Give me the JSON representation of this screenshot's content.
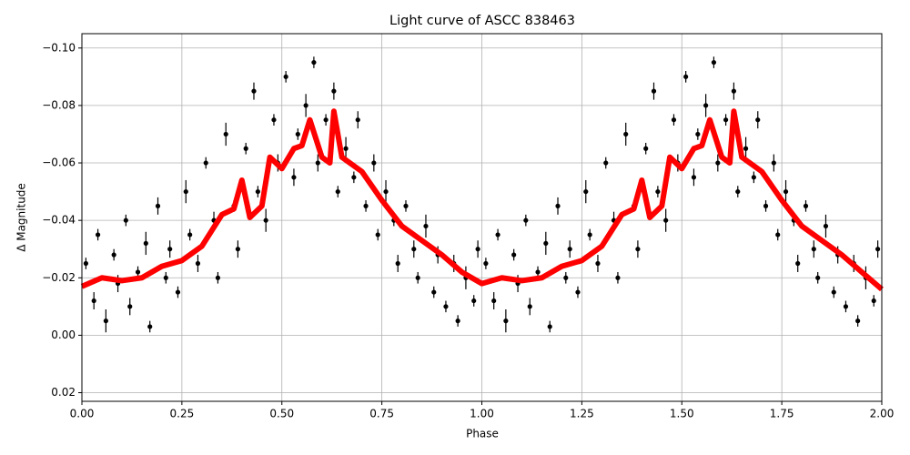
{
  "chart_data": {
    "type": "scatter",
    "title": "Light curve of ASCC 838463",
    "x_label": "Phase",
    "y_label": "Δ Magnitude",
    "xlim": [
      0,
      2
    ],
    "ylim": [
      0.023,
      -0.105
    ],
    "grid": true,
    "xticks": [
      {
        "value": 0,
        "label": "0.00"
      },
      {
        "value": 0.25,
        "label": "0.25"
      },
      {
        "value": 0.5,
        "label": "0.50"
      },
      {
        "value": 0.75,
        "label": "0.75"
      },
      {
        "value": 1,
        "label": "1.00"
      },
      {
        "value": 1.25,
        "label": "1.25"
      },
      {
        "value": 1.5,
        "label": "1.50"
      },
      {
        "value": 1.75,
        "label": "1.75"
      },
      {
        "value": 2,
        "label": "2.00"
      }
    ],
    "yticks": [
      {
        "value": -0.1,
        "label": "−0.10"
      },
      {
        "value": -0.08,
        "label": "−0.08"
      },
      {
        "value": -0.06,
        "label": "−0.06"
      },
      {
        "value": -0.04,
        "label": "−0.04"
      },
      {
        "value": -0.02,
        "label": "−0.02"
      },
      {
        "value": 0,
        "label": "0.00"
      },
      {
        "value": 0.02,
        "label": "0.02"
      }
    ],
    "series": [
      {
        "type": "errorbar",
        "color": "#000000",
        "x": [
          0.01,
          0.03,
          0.04,
          0.06,
          0.08,
          0.09,
          0.11,
          0.12,
          0.14,
          0.16,
          0.17,
          0.19,
          0.21,
          0.22,
          0.24,
          0.26,
          0.27,
          0.29,
          0.31,
          0.33,
          0.34,
          0.36,
          0.38,
          0.39,
          0.41,
          0.43,
          0.44,
          0.46,
          0.48,
          0.49,
          0.51,
          0.53,
          0.54,
          0.56,
          0.58,
          0.59,
          0.61,
          0.63,
          0.64,
          0.66,
          0.68,
          0.69,
          0.71,
          0.73,
          0.74,
          0.76,
          0.78,
          0.79,
          0.81,
          0.83,
          0.84,
          0.86,
          0.88,
          0.89,
          0.91,
          0.93,
          0.94,
          0.96,
          0.98,
          0.99,
          1.01,
          1.03,
          1.04,
          1.06,
          1.08,
          1.09,
          1.11,
          1.12,
          1.14,
          1.16,
          1.17,
          1.19,
          1.21,
          1.22,
          1.24,
          1.26,
          1.27,
          1.29,
          1.31,
          1.33,
          1.34,
          1.36,
          1.38,
          1.39,
          1.41,
          1.43,
          1.44,
          1.46,
          1.48,
          1.49,
          1.51,
          1.53,
          1.54,
          1.56,
          1.58,
          1.59,
          1.61,
          1.63,
          1.64,
          1.66,
          1.68,
          1.69,
          1.71,
          1.73,
          1.74,
          1.76,
          1.78,
          1.79,
          1.81,
          1.83,
          1.84,
          1.86,
          1.88,
          1.89,
          1.91,
          1.93,
          1.94,
          1.96,
          1.98,
          1.99
        ],
        "values": [
          -0.025,
          -0.012,
          -0.035,
          -0.005,
          -0.028,
          -0.018,
          -0.04,
          -0.01,
          -0.022,
          -0.032,
          -0.003,
          -0.045,
          -0.02,
          -0.03,
          -0.015,
          -0.05,
          -0.035,
          -0.025,
          -0.06,
          -0.04,
          -0.02,
          -0.07,
          -0.045,
          -0.03,
          -0.065,
          -0.085,
          -0.05,
          -0.04,
          -0.075,
          -0.06,
          -0.09,
          -0.055,
          -0.07,
          -0.08,
          -0.095,
          -0.06,
          -0.075,
          -0.085,
          -0.05,
          -0.065,
          -0.055,
          -0.075,
          -0.045,
          -0.06,
          -0.035,
          -0.05,
          -0.04,
          -0.025,
          -0.045,
          -0.03,
          -0.02,
          -0.038,
          -0.015,
          -0.028,
          -0.01,
          -0.025,
          -0.005,
          -0.02,
          -0.012,
          -0.03,
          -0.025,
          -0.012,
          -0.035,
          -0.005,
          -0.028,
          -0.018,
          -0.04,
          -0.01,
          -0.022,
          -0.032,
          -0.003,
          -0.045,
          -0.02,
          -0.03,
          -0.015,
          -0.05,
          -0.035,
          -0.025,
          -0.06,
          -0.04,
          -0.02,
          -0.07,
          -0.045,
          -0.03,
          -0.065,
          -0.085,
          -0.05,
          -0.04,
          -0.075,
          -0.06,
          -0.09,
          -0.055,
          -0.07,
          -0.08,
          -0.095,
          -0.06,
          -0.075,
          -0.085,
          -0.05,
          -0.065,
          -0.055,
          -0.075,
          -0.045,
          -0.06,
          -0.035,
          -0.05,
          -0.04,
          -0.025,
          -0.045,
          -0.03,
          -0.02,
          -0.038,
          -0.015,
          -0.028,
          -0.01,
          -0.025,
          -0.005,
          -0.02,
          -0.012,
          -0.03
        ],
        "errors": [
          0.002,
          0.003,
          0.002,
          0.004,
          0.002,
          0.003,
          0.002,
          0.003,
          0.002,
          0.004,
          0.002,
          0.003,
          0.002,
          0.003,
          0.002,
          0.004,
          0.002,
          0.003,
          0.002,
          0.003,
          0.002,
          0.004,
          0.002,
          0.003,
          0.002,
          0.003,
          0.002,
          0.004,
          0.002,
          0.003,
          0.002,
          0.003,
          0.002,
          0.004,
          0.002,
          0.003,
          0.002,
          0.003,
          0.002,
          0.004,
          0.002,
          0.003,
          0.002,
          0.003,
          0.002,
          0.004,
          0.002,
          0.003,
          0.002,
          0.003,
          0.002,
          0.004,
          0.002,
          0.003,
          0.002,
          0.003,
          0.002,
          0.004,
          0.002,
          0.003,
          0.002,
          0.003,
          0.002,
          0.004,
          0.002,
          0.003,
          0.002,
          0.003,
          0.002,
          0.004,
          0.002,
          0.003,
          0.002,
          0.003,
          0.002,
          0.004,
          0.002,
          0.003,
          0.002,
          0.003,
          0.002,
          0.004,
          0.002,
          0.003,
          0.002,
          0.003,
          0.002,
          0.004,
          0.002,
          0.003,
          0.002,
          0.003,
          0.002,
          0.004,
          0.002,
          0.003,
          0.002,
          0.003,
          0.002,
          0.004,
          0.002,
          0.003,
          0.002,
          0.003,
          0.002,
          0.004,
          0.002,
          0.003,
          0.002,
          0.003,
          0.002,
          0.004,
          0.002,
          0.003,
          0.002,
          0.003,
          0.002,
          0.004,
          0.002,
          0.003
        ]
      },
      {
        "type": "line",
        "color": "#ff0000",
        "x": [
          0,
          0.05,
          0.1,
          0.15,
          0.2,
          0.25,
          0.3,
          0.35,
          0.38,
          0.4,
          0.42,
          0.45,
          0.47,
          0.5,
          0.53,
          0.55,
          0.57,
          0.6,
          0.62,
          0.63,
          0.65,
          0.7,
          0.75,
          0.8,
          0.85,
          0.9,
          0.95,
          1.0,
          1.05,
          1.1,
          1.15,
          1.2,
          1.25,
          1.3,
          1.35,
          1.38,
          1.4,
          1.42,
          1.45,
          1.47,
          1.5,
          1.53,
          1.55,
          1.57,
          1.6,
          1.62,
          1.63,
          1.65,
          1.7,
          1.75,
          1.8,
          1.85,
          1.9,
          1.95,
          2.0
        ],
        "values": [
          -0.017,
          -0.02,
          -0.019,
          -0.02,
          -0.024,
          -0.026,
          -0.031,
          -0.042,
          -0.044,
          -0.054,
          -0.041,
          -0.045,
          -0.062,
          -0.058,
          -0.065,
          -0.066,
          -0.075,
          -0.062,
          -0.06,
          -0.078,
          -0.062,
          -0.057,
          -0.047,
          -0.038,
          -0.033,
          -0.028,
          -0.022,
          -0.018,
          -0.02,
          -0.019,
          -0.02,
          -0.024,
          -0.026,
          -0.031,
          -0.042,
          -0.044,
          -0.054,
          -0.041,
          -0.045,
          -0.062,
          -0.058,
          -0.065,
          -0.066,
          -0.075,
          -0.062,
          -0.06,
          -0.078,
          -0.062,
          -0.057,
          -0.047,
          -0.038,
          -0.033,
          -0.028,
          -0.022,
          -0.016
        ]
      }
    ]
  }
}
